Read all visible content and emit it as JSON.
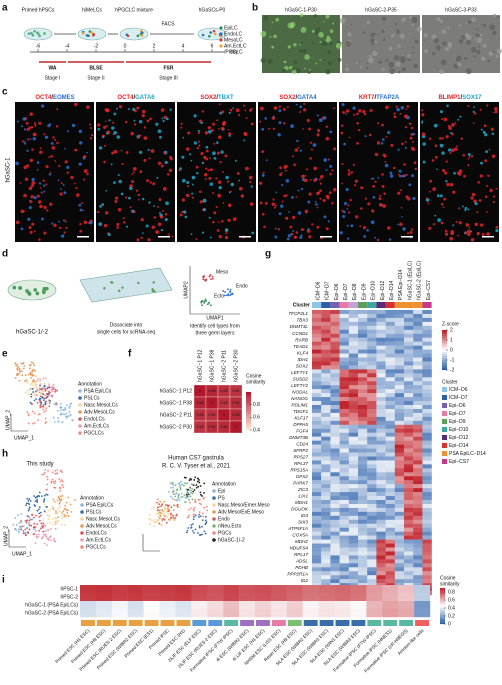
{
  "panel_labels": [
    "a",
    "b",
    "c",
    "d",
    "e",
    "f",
    "g",
    "h",
    "i"
  ],
  "a": {
    "steps": [
      "Primed hPSCs",
      "hiMeLCs",
      "hPGCLC mixture",
      "FACS",
      "hGaSCs-P0"
    ],
    "days": [
      -6,
      -4,
      -2,
      0,
      2,
      4,
      6
    ],
    "day_unit": "day",
    "media": [
      "WA",
      "BLSE",
      "FSR"
    ],
    "stages": [
      "Stage I",
      "Stage II",
      "Stage III"
    ],
    "legend": [
      "EpiLC",
      "EndoLC",
      "MesoLC",
      "Am.EctLC"
    ],
    "legend_extra": "/PGCLC",
    "legend_colors": [
      "#2e8b57",
      "#2a6fc9",
      "#d43c3c",
      "#f0a030"
    ]
  },
  "b": {
    "images": [
      "hGaSC-1-P30",
      "hGaSC-2-P35",
      "hGaSC-3-P33"
    ]
  },
  "c": {
    "row_label": "hGaSC-1",
    "stains": [
      [
        "OCT4",
        "/",
        "EOMES"
      ],
      [
        "OCT4",
        "/",
        "GATA6"
      ],
      [
        "SOX2",
        "/",
        "TBXT"
      ],
      [
        "SOX2",
        "/",
        "GATA4"
      ],
      [
        "KRT7",
        "/",
        "TFAP2A"
      ],
      [
        "BLIMP1",
        "/",
        "SOX17"
      ]
    ],
    "stain_colors": [
      [
        "#e0242a",
        "#111",
        "#2a6fd0"
      ],
      [
        "#e0242a",
        "#111",
        "#1fa6c8"
      ],
      [
        "#e0242a",
        "#111",
        "#1fa6c8"
      ],
      [
        "#e0242a",
        "#111",
        "#2a6fd0"
      ],
      [
        "#e0242a",
        "#111",
        "#2a6fd0"
      ],
      [
        "#e0242a",
        "#111",
        "#1fa6c8"
      ]
    ]
  },
  "d": {
    "sample": "hGaSC-1/-2",
    "step1": [
      "Dissociate into",
      "single cells for scRNA-seq"
    ],
    "step2": [
      "Identify cell types from",
      "three germ layers"
    ],
    "clusters": [
      "Meso",
      "Endo",
      "Ecto"
    ],
    "x_label": "UMAP1",
    "y_label": "UMAP2"
  },
  "e": {
    "legend_title": "Annotation",
    "annotations": [
      "PSA EpiLCs",
      "PSLCs",
      "Nasc.MesoLCs",
      "Adv.MesoLCs",
      "EndoLCs",
      "Am.EctLCs",
      "PGCLCs"
    ],
    "colors": [
      "#8fb8e0",
      "#3a6ea8",
      "#f4d7a0",
      "#e89a5a",
      "#d75a5a",
      "#e8a0b8",
      "#f28a80"
    ],
    "x_label": "UMAP_1",
    "y_label": "UMAP_2"
  },
  "f": {
    "samples": [
      "hGaSC−1 P12",
      "hGaSC−1 P38",
      "hGaSC−2 P11",
      "hGaSC−2 P30"
    ],
    "values": [
      [
        1,
        0.96,
        0.93,
        0.92
      ],
      [
        0.96,
        1,
        0.92,
        0.94
      ],
      [
        0.93,
        0.92,
        1,
        0.95
      ],
      [
        0.92,
        0.94,
        0.95,
        1
      ]
    ],
    "scale_title": [
      "Cosine",
      "similarity"
    ],
    "scale_ticks": [
      0.4,
      0.6,
      0.8
    ],
    "scale_range": [
      0.4,
      1
    ]
  },
  "g": {
    "columns": [
      "ICM−D6",
      "ICM−D7",
      "Epi−D6",
      "Epi−D7",
      "Epi−D8",
      "Epi−D9",
      "Epi−D10",
      "Epi−D12",
      "Epi−D14",
      "PSA Epi−D14",
      "hGaSC-1 (EpiLC)",
      "hGaSC-2 (EpiLC)",
      "Epi−CS7"
    ],
    "column_colors": [
      "#8fc3e8",
      "#2b5fa8",
      "#7a5fb0",
      "#e87aa8",
      "#c8a0d8",
      "#5aa05a",
      "#3aa8a0",
      "#5a2a7a",
      "#d83030",
      "#f09030",
      "#f09030",
      "#f09030",
      "#c8388a"
    ],
    "cluster_label": "Cluster",
    "genes": [
      "TFCP2L1",
      "TBX3",
      "DNMT3L",
      "CCND1",
      "RARB",
      "TEAD1",
      "KLF4",
      "IDH1",
      "SOX2",
      "LEFTY1",
      "SUSD2",
      "LEFTY2",
      "NODAL",
      "NANOG",
      "PDLIM1",
      "TDGF1",
      "KLF17",
      "DPPA5",
      "FGF4",
      "DNMT3B",
      "CD24",
      "SFRP2",
      "RPS27",
      "RPL37",
      "RPS15A",
      "GPX2",
      "PARK7",
      "ZIC3",
      "LIX1",
      "MDH1",
      "DGUOK",
      "ID3",
      "SIX3",
      "ATP5F1A",
      "COX5A",
      "MDH2",
      "NDUFS4",
      "RPL17",
      "ADSL",
      "PDHB",
      "PPP2R1A",
      "ID2",
      "IDH3B"
    ],
    "scale_title": "Z-score",
    "scale_ticks": [
      2,
      1,
      0,
      -1,
      -2
    ],
    "scale_range": [
      -2,
      2
    ],
    "legend_title": "Cluster",
    "legend": [
      "ICM−D6",
      "ICM−D7",
      "Epi−D6",
      "Epi−D7",
      "Epi−D9",
      "Epi−D10",
      "Epi−D12",
      "Epi−D14",
      "PSA EpiLC−D14",
      "Epi−CS7"
    ],
    "legend_colors": [
      "#8fc3e8",
      "#2b5fa8",
      "#7a5fb0",
      "#e87aa8",
      "#5aa05a",
      "#3aa8a0",
      "#5a2a7a",
      "#d83030",
      "#f09030",
      "#c8388a"
    ]
  },
  "h": {
    "left": {
      "title": "This study",
      "legend_title": "Annotation",
      "annotations": [
        "PSA EpiLCs",
        "PSLCs",
        "Nasc.MesoLCs",
        "Adv.MesoLCs",
        "EndoLCs",
        "Am.EctLCs",
        "PGCLCs"
      ],
      "colors": [
        "#8fb8e0",
        "#3a6ea8",
        "#f4d7a0",
        "#e89a5a",
        "#d75a5a",
        "#e8a0b8",
        "#f28a80"
      ],
      "x_label": "UMAP_1",
      "y_label": "UMAP_2"
    },
    "right": {
      "title": "Human CS7 gastrula",
      "source": "R. C. V. Tyser et al., 2021",
      "legend_title": "Annotation",
      "annotations": [
        "Epi",
        "PS",
        "Nasc.Meso/Emer.Meso",
        "Adv.Meso/ExE.Meso",
        "Endo",
        "nNeu.Ecto",
        "PGCs",
        "hGaSC-1/-2"
      ],
      "colors": [
        "#8fb8e0",
        "#3a6ea8",
        "#f4d7a0",
        "#e89a5a",
        "#d75a5a",
        "#7ab870",
        "#f28a80",
        "#222222"
      ]
    }
  },
  "i": {
    "rows": [
      "hPSC-1",
      "hPSC-2",
      "hGaSC-1 (PSA EpiLCs)",
      "hGaSC-2 (PSA EpiLCs)"
    ],
    "columns": [
      "Primed ESC (H1 ESC)",
      "Primed ESC (H9 ESC)",
      "Primed ESC (RUES-2 ESC)",
      "Primed ESC (WIBR2 ESC)",
      "Primed ESC (ES1)",
      "Primed iPSC",
      "Primed ESC (H1)",
      "2iLIF ESC (ELF ESC)",
      "2iLIF ESC (RUES-2 ESC)",
      "Formative iPSC (FTW iPSC)",
      "4i ESC (WIBR2 ESC)",
      "4i LIF ESC (H1 ESC)",
      "NHSM ESC (LIS1 ESC)",
      "Reset ESC (H9 ESC)",
      "5iLA ESC (WIBR2 ESC)",
      "5iLA ESC (WIBR3 ESC)",
      "5iLA ESC (WIN1 ESC)",
      "5iLA ESC (WIBR3 ESC)",
      "Formative iPSC (FTW iPSC)",
      "Formative iPSC (HNES1)",
      "Formative iPSC (cR-H9EOS)",
      "Amnion-like cells"
    ],
    "column_colors": [
      "#e8a040",
      "#e8a040",
      "#e8a040",
      "#e8a040",
      "#e8a040",
      "#e8a040",
      "#e8a040",
      "#5a9ad8",
      "#5a9ad8",
      "#5ab8a0",
      "#a070c0",
      "#a070c0",
      "#e87aa8",
      "#7ac070",
      "#3a6ea8",
      "#3a6ea8",
      "#3a6ea8",
      "#3a6ea8",
      "#5ab8a0",
      "#5ab8a0",
      "#5ab8a0",
      "#f06060"
    ],
    "values": [
      [
        0.86,
        0.87,
        0.85,
        0.86,
        0.84,
        0.85,
        0.86,
        0.82,
        0.8,
        0.83,
        0.8,
        0.81,
        0.79,
        0.77,
        0.74,
        0.75,
        0.76,
        0.74,
        0.66,
        0.62,
        0.58,
        0.3
      ],
      [
        0.85,
        0.86,
        0.84,
        0.85,
        0.83,
        0.84,
        0.85,
        0.81,
        0.79,
        0.82,
        0.79,
        0.8,
        0.78,
        0.76,
        0.73,
        0.74,
        0.75,
        0.73,
        0.65,
        0.61,
        0.57,
        0.31
      ],
      [
        0.35,
        0.38,
        0.42,
        0.36,
        0.45,
        0.4,
        0.37,
        0.48,
        0.52,
        0.58,
        0.5,
        0.54,
        0.5,
        0.55,
        0.47,
        0.5,
        0.49,
        0.46,
        0.6,
        0.64,
        0.62,
        0.15
      ],
      [
        0.36,
        0.39,
        0.43,
        0.37,
        0.46,
        0.41,
        0.38,
        0.49,
        0.53,
        0.59,
        0.51,
        0.55,
        0.51,
        0.56,
        0.48,
        0.51,
        0.5,
        0.47,
        0.61,
        0.65,
        0.63,
        0.16
      ]
    ],
    "scale_title": [
      "Cosine",
      "similarity"
    ],
    "scale_ticks": [
      0.8,
      0.6,
      0.4,
      0.2,
      0
    ],
    "scale_range": [
      0,
      0.9
    ]
  }
}
